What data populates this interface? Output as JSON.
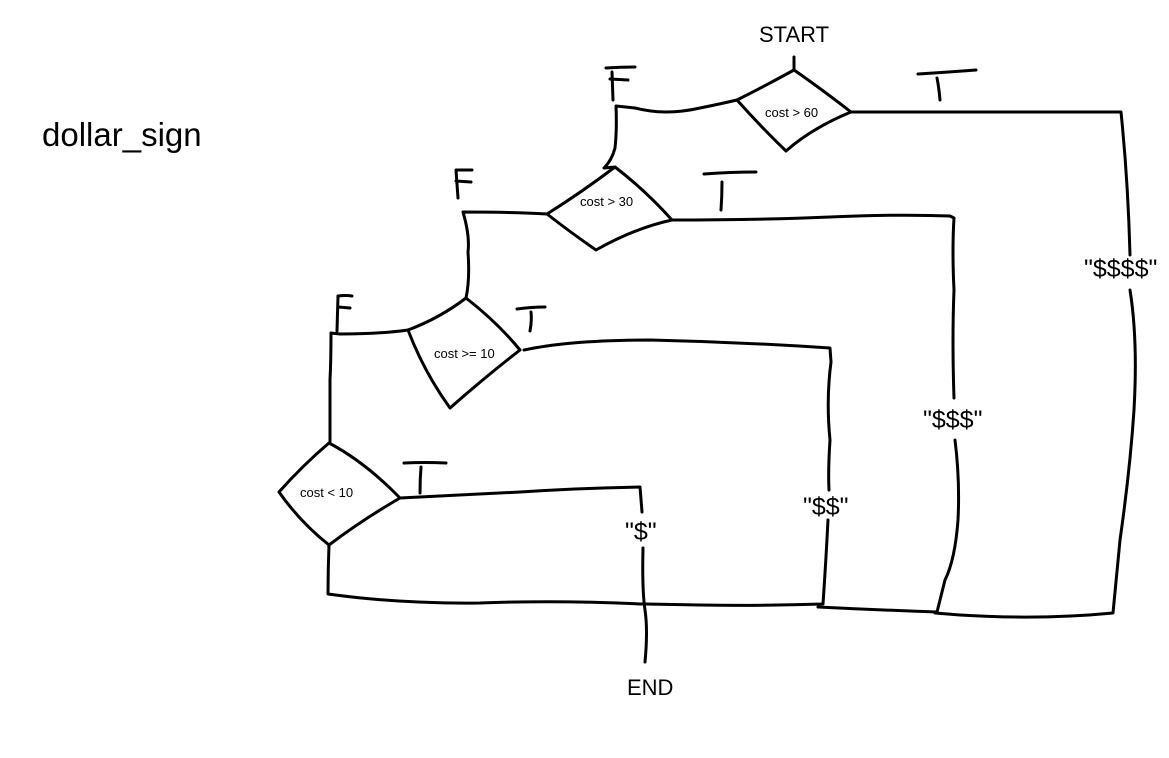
{
  "function_name": "dollar_sign",
  "start_label": "START",
  "end_label": "END",
  "conditions": [
    {
      "text": "cost > 60"
    },
    {
      "text": "cost > 30"
    },
    {
      "text": "cost >= 10"
    },
    {
      "text": "cost < 10"
    }
  ],
  "outputs": [
    {
      "text": "\"$\""
    },
    {
      "text": "\"$$\""
    },
    {
      "text": "\"$$$\""
    },
    {
      "text": "\"$$$$\""
    }
  ],
  "branch_labels": {
    "true": "T",
    "false": "F"
  }
}
